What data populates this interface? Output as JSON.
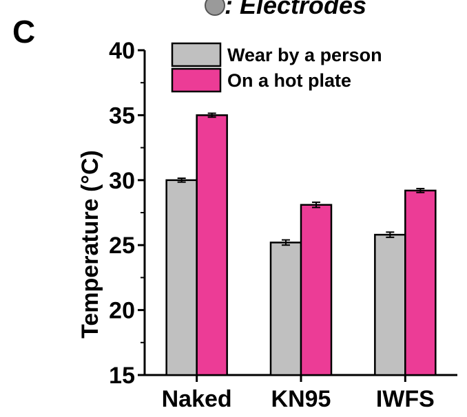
{
  "figure": {
    "panel_letter": "C",
    "header_text": ": Electrodes",
    "header_marker": "gray-circle"
  },
  "chart_data": {
    "type": "bar",
    "categories": [
      "Naked",
      "KN95",
      "IWFS"
    ],
    "series": [
      {
        "name": "Wear by a person",
        "values": [
          30.0,
          25.2,
          25.8
        ],
        "errors": [
          0.15,
          0.2,
          0.2
        ],
        "color": "#c0c0c0"
      },
      {
        "name": "On a hot plate",
        "values": [
          35.0,
          28.1,
          29.2
        ],
        "errors": [
          0.15,
          0.2,
          0.15
        ],
        "color": "#ec3c96"
      }
    ],
    "ylabel": "Temperature (°C)",
    "xlabel": "",
    "ylim": [
      15,
      40
    ],
    "yticks": [
      15,
      20,
      25,
      30,
      35,
      40
    ],
    "grid": false,
    "legend_position": "top-left"
  }
}
